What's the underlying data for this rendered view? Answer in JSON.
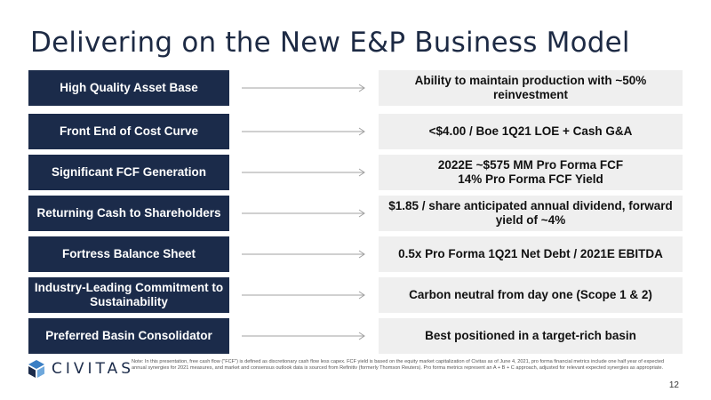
{
  "title": "Delivering on the New E&P Business Model",
  "rows": [
    {
      "left": "High Quality Asset Base",
      "right": "Ability to maintain production with ~50% reinvestment"
    },
    {
      "left": "Front End of Cost Curve",
      "right": "<$4.00 / Boe 1Q21 LOE + Cash G&A"
    },
    {
      "left": "Significant FCF Generation",
      "right": "2022E ~$575 MM Pro Forma FCF\n14% Pro Forma FCF Yield"
    },
    {
      "left": "Returning Cash to Shareholders",
      "right": "$1.85 / share anticipated annual dividend, forward yield of ~4%"
    },
    {
      "left": "Fortress Balance Sheet",
      "right": "0.5x Pro Forma 1Q21 Net Debt / 2021E EBITDA"
    },
    {
      "left": "Industry-Leading Commitment to Sustainability",
      "right": "Carbon neutral from day one (Scope 1 & 2)"
    },
    {
      "left": "Preferred Basin Consolidator",
      "right": "Best positioned in a target-rich basin"
    }
  ],
  "logo": {
    "text": "CIVITAS",
    "icon": "civitas-logo-icon"
  },
  "note": "Note: In this presentation, free cash flow (\"FCF\") is defined as discretionary cash flow less capex. FCF yield is based on the equity market capitalization of Civitas as of June 4, 2021, pro forma financial metrics include one half year of expected annual synergies for 2021 measures, and market and consensus outlook data is sourced from Refinitiv (formerly Thomson Reuters). Pro forma metrics represent an A + B + C approach, adjusted for relevant expected synergies as appropriate.",
  "page_number": "12",
  "colors": {
    "navy": "#1b2b4a",
    "light_gray": "#efefef",
    "arrow": "#9a9a9a"
  }
}
